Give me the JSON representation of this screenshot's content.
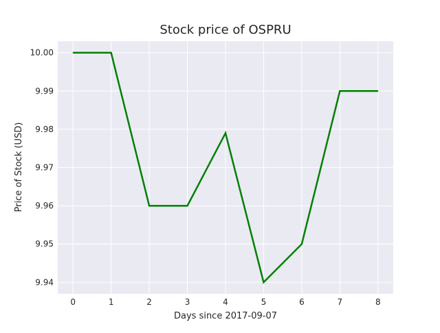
{
  "chart_data": {
    "type": "line",
    "title": "Stock price of OSPRU",
    "xlabel": "Days since 2017-09-07",
    "ylabel": "Price of Stock (USD)",
    "x": [
      0,
      1,
      2,
      3,
      4,
      5,
      6,
      7,
      8
    ],
    "series": [
      {
        "values": [
          10.0,
          10.0,
          9.96,
          9.96,
          9.979,
          9.94,
          9.95,
          9.99,
          9.99
        ],
        "color": "#008000"
      }
    ],
    "xlim": [
      -0.4,
      8.4
    ],
    "ylim": [
      9.937,
      10.003
    ],
    "xticks": [
      0,
      1,
      2,
      3,
      4,
      5,
      6,
      7,
      8
    ],
    "xtick_labels": [
      "0",
      "1",
      "2",
      "3",
      "4",
      "5",
      "6",
      "7",
      "8"
    ],
    "yticks": [
      9.94,
      9.95,
      9.96,
      9.97,
      9.98,
      9.99,
      10.0
    ],
    "ytick_labels": [
      "9.94",
      "9.95",
      "9.96",
      "9.97",
      "9.98",
      "9.99",
      "10.00"
    ],
    "grid": true,
    "background_color": "#eaeaf2",
    "grid_color": "#ffffff"
  }
}
